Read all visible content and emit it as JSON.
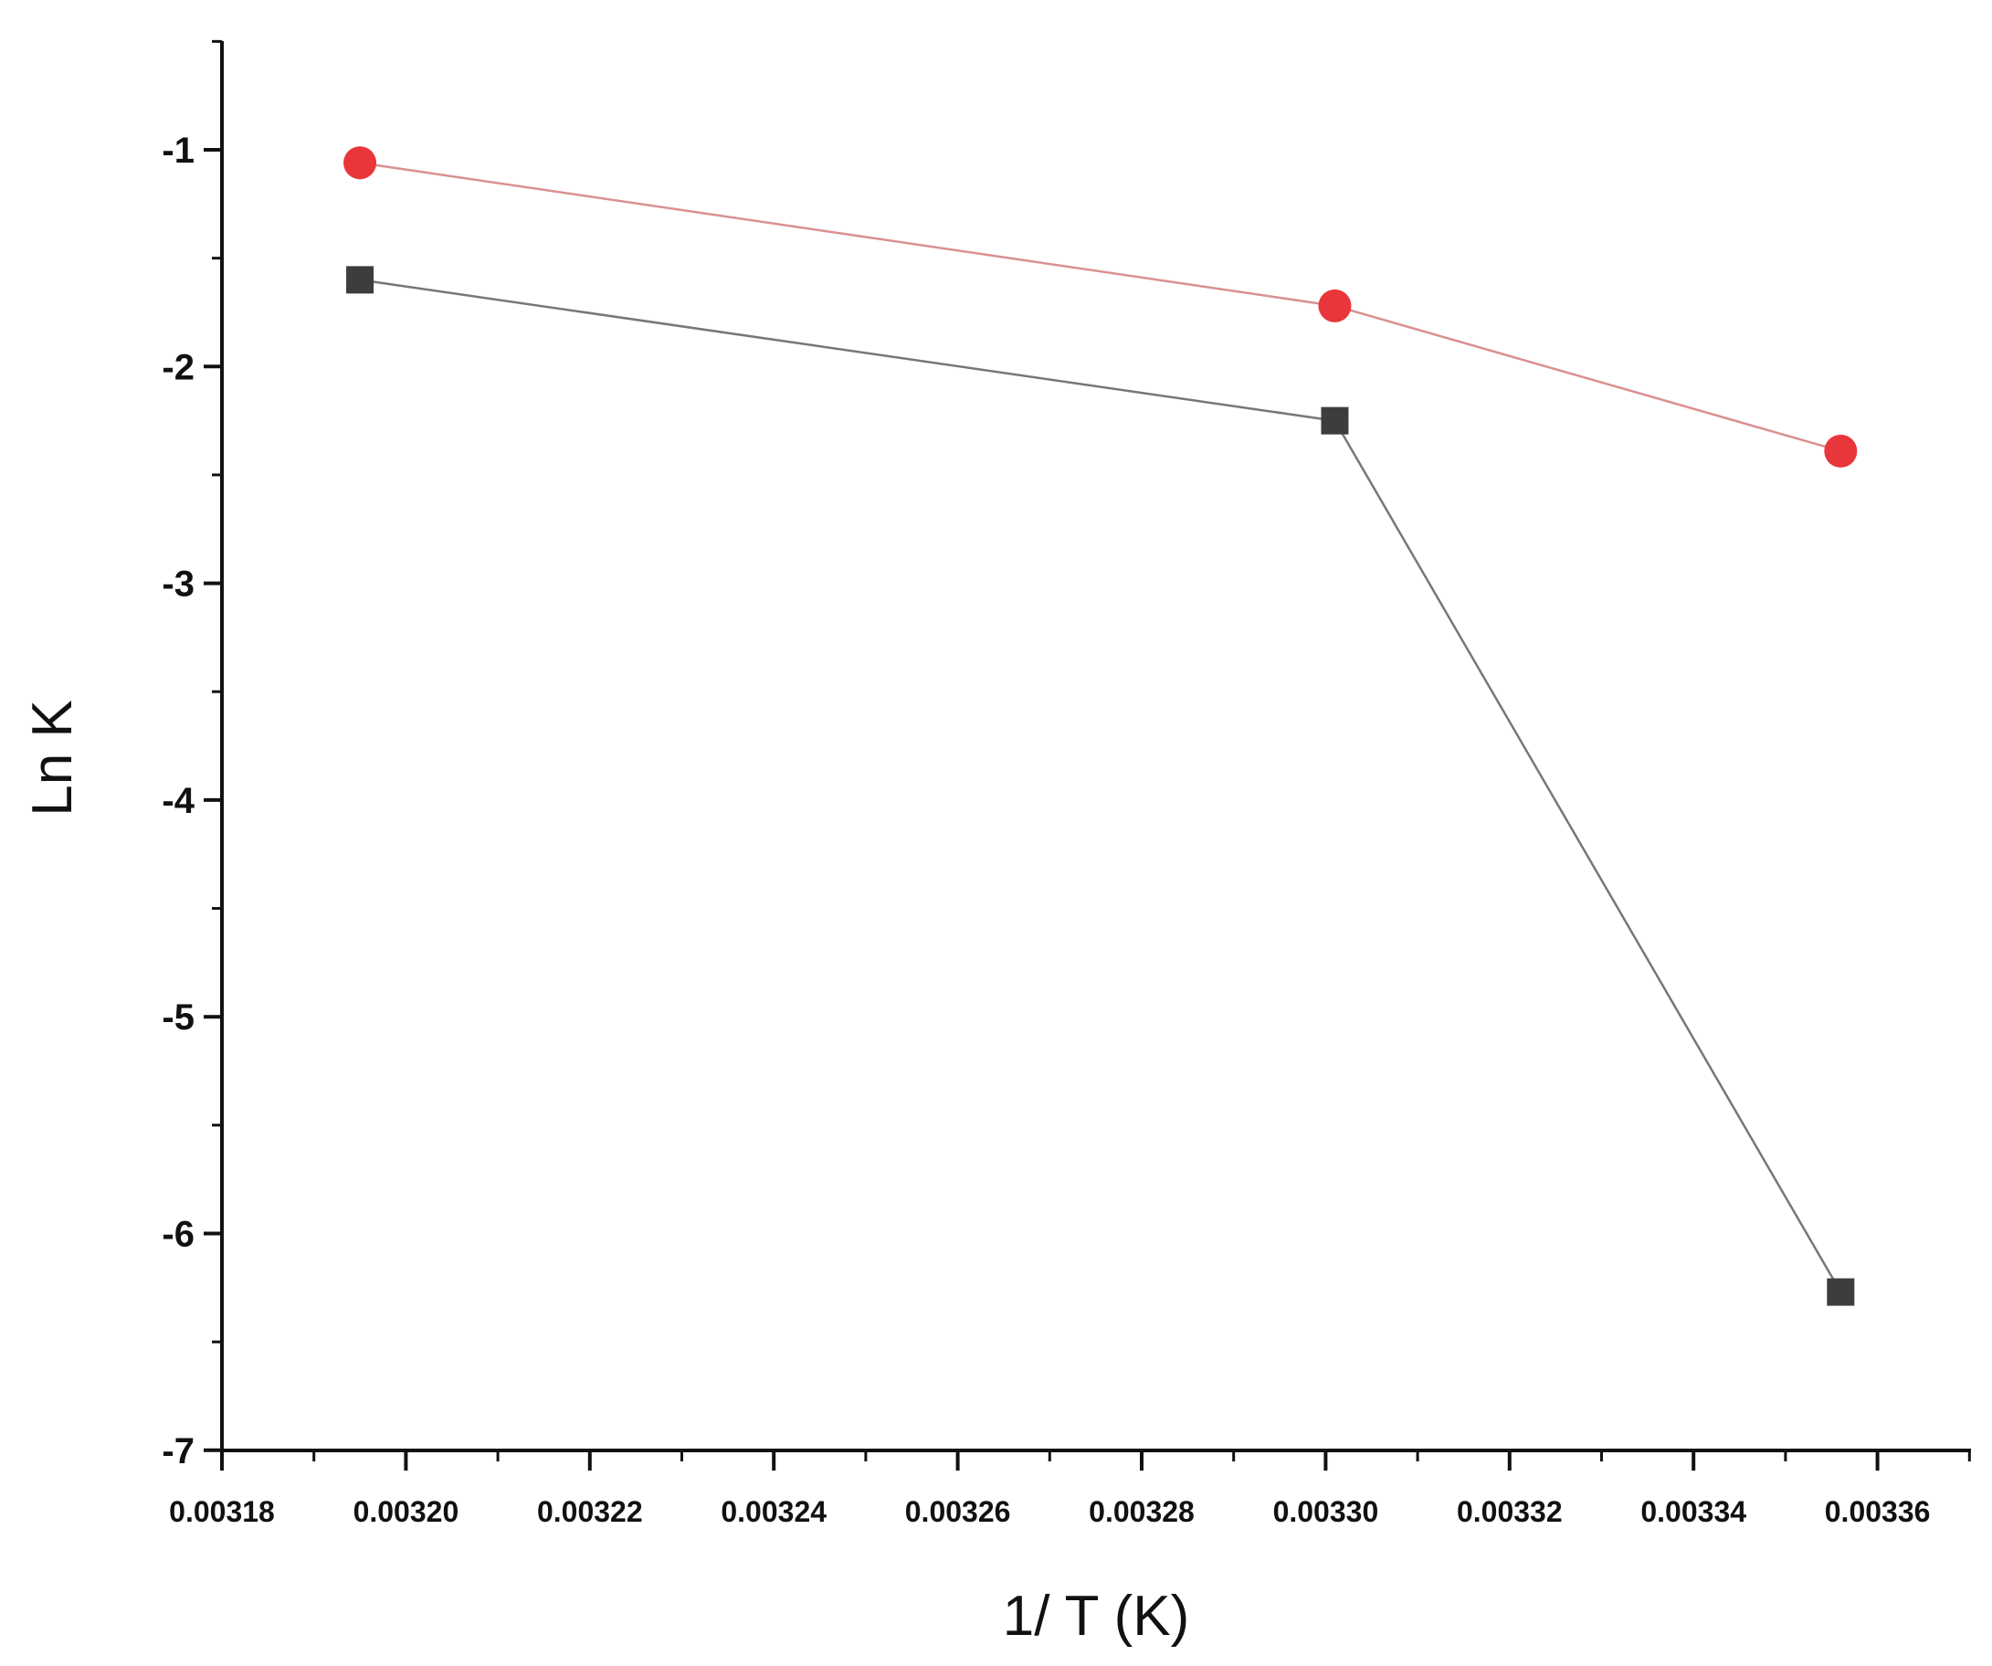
{
  "chart_data": {
    "type": "line",
    "title": "",
    "xlabel": "1/ T (K)",
    "ylabel": "Ln K",
    "xlim": [
      0.00318,
      0.003369
    ],
    "ylim": [
      -7,
      -0.49
    ],
    "x_ticks": [
      "0.00318",
      "0.00320",
      "0.00322",
      "0.00324",
      "0.00326",
      "0.00328",
      "0.00330",
      "0.00332",
      "0.00334",
      "0.00336"
    ],
    "x_tick_values": [
      0.00318,
      0.0032,
      0.00322,
      0.00324,
      0.00326,
      0.00328,
      0.0033,
      0.00332,
      0.00334,
      0.00336
    ],
    "y_ticks": [
      "-1",
      "-2",
      "-3",
      "-4",
      "-5",
      "-6",
      "-7"
    ],
    "y_tick_values": [
      -1,
      -2,
      -3,
      -4,
      -5,
      -6,
      -7
    ],
    "grid": false,
    "legend": "none",
    "series": [
      {
        "marker": "square",
        "color": "#3d3d3d",
        "line_color": "#777777",
        "x": [
          0.003195,
          0.003301,
          0.003356
        ],
        "y": [
          -1.6,
          -2.25,
          -6.27
        ]
      },
      {
        "marker": "circle",
        "color": "#e8363a",
        "line_color": "#d99090",
        "x": [
          0.003195,
          0.003301,
          0.003356
        ],
        "y": [
          -1.06,
          -1.72,
          -2.39
        ]
      }
    ]
  }
}
